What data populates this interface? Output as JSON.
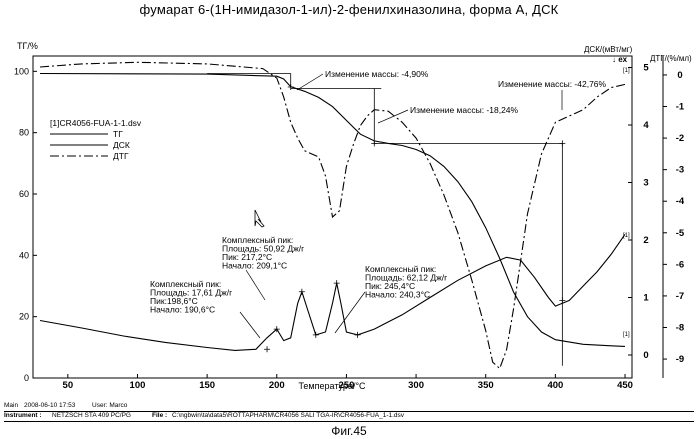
{
  "title": "фумарат 6-(1Н-имидазол-1-ил)-2-фенилхиназолина, форма А, ДСК",
  "footer": {
    "main_label": "Main",
    "main_info": "2008-06-10 17:53",
    "user_label": "User: Marco",
    "instrument_label": "Instrument :",
    "instrument": "NETZSCH STA 409 PC/PG",
    "file_label": "File :",
    "file": "C:\\ngbwin\\ta\\data5\\ROTTAPHARM\\CR4056 SALI TGA-IR\\CR4056-FUA_1-1.dsv"
  },
  "figure_label": "Фиг.45",
  "chart_data": {
    "type": "line",
    "xlabel": "Температура/°С",
    "ylabel_left": "ТГ/%",
    "ylabel_dsc": "ДСК/(мВт/мг)",
    "exo_label": "↓ ex",
    "ylabel_dtg": "ДТГ/(%/мл)",
    "xlim": [
      25,
      455
    ],
    "ylim_tg": [
      0,
      105
    ],
    "ylim_dsc": [
      -0.4,
      5.2
    ],
    "ylim_dtg": [
      -9.6,
      0.6
    ],
    "x_ticks": [
      50,
      100,
      150,
      200,
      250,
      300,
      350,
      400,
      450
    ],
    "tg_ticks": [
      0,
      20,
      40,
      60,
      80,
      100
    ],
    "dsc_ticks": [
      0,
      1,
      2,
      3,
      4,
      5
    ],
    "dtg_ticks": [
      0,
      -1,
      -2,
      -3,
      -4,
      -5,
      -6,
      -7,
      -8,
      -9
    ],
    "legend": {
      "file": "[1]CR4056-FUA-1-1.dsv",
      "entries": [
        "ТГ",
        "ДСК",
        "ДТГ"
      ]
    },
    "series": [
      {
        "name": "ТГ",
        "style": "solid",
        "axis": "tg",
        "x": [
          30,
          150,
          200,
          205,
          208,
          210,
          220,
          230,
          240,
          250,
          260,
          270,
          280,
          290,
          300,
          310,
          320,
          330,
          340,
          350,
          360,
          370,
          380,
          390,
          400,
          420,
          440,
          450
        ],
        "y": [
          99.3,
          99.1,
          98.4,
          97.5,
          96.0,
          95.0,
          93.5,
          91.5,
          88.5,
          84.0,
          79.5,
          77.3,
          76.5,
          75.8,
          74.5,
          72.5,
          69.0,
          64.0,
          57.5,
          49.0,
          39.0,
          28.0,
          20.0,
          15.0,
          12.5,
          11.0,
          10.5,
          10.3
        ]
      },
      {
        "name": "ДСК",
        "style": "solid",
        "axis": "dsc",
        "x": [
          30,
          60,
          90,
          120,
          150,
          170,
          185,
          193,
          200,
          205,
          210,
          215,
          218,
          222,
          228,
          235,
          240,
          243,
          246,
          250,
          258,
          270,
          290,
          310,
          330,
          350,
          365,
          375,
          385,
          395,
          400,
          410,
          420,
          430,
          440,
          450
        ],
        "y": [
          0.6,
          0.47,
          0.33,
          0.22,
          0.13,
          0.08,
          0.1,
          0.3,
          0.45,
          0.25,
          0.3,
          0.9,
          1.1,
          0.8,
          0.35,
          0.4,
          0.9,
          1.25,
          0.9,
          0.4,
          0.35,
          0.45,
          0.7,
          1.0,
          1.3,
          1.55,
          1.7,
          1.65,
          1.35,
          1.0,
          0.85,
          0.95,
          1.2,
          1.45,
          1.75,
          2.1
        ]
      },
      {
        "name": "ДТГ",
        "style": "dash-dot",
        "axis": "dtg",
        "x": [
          30,
          60,
          100,
          150,
          190,
          200,
          205,
          210,
          215,
          220,
          225,
          230,
          235,
          240,
          245,
          250,
          255,
          260,
          265,
          270,
          280,
          290,
          300,
          310,
          320,
          330,
          340,
          350,
          355,
          360,
          365,
          370,
          375,
          380,
          390,
          400,
          410,
          420,
          430,
          440,
          450
        ],
        "y": [
          0.25,
          0.35,
          0.4,
          0.35,
          0.2,
          -0.1,
          -0.7,
          -1.5,
          -2.0,
          -2.4,
          -2.5,
          -2.6,
          -3.2,
          -4.5,
          -4.3,
          -2.9,
          -2.2,
          -1.6,
          -1.3,
          -1.1,
          -1.15,
          -1.5,
          -2.0,
          -2.8,
          -3.8,
          -5.0,
          -6.5,
          -8.1,
          -9.1,
          -9.3,
          -8.7,
          -7.4,
          -5.9,
          -4.4,
          -2.5,
          -1.5,
          -1.3,
          -1.1,
          -0.7,
          -0.4,
          -0.3
        ]
      }
    ],
    "annotations": [
      {
        "text": "Изменение массы: -4,90%"
      },
      {
        "text": "Изменение массы: -18,24%"
      },
      {
        "text": "Изменение массы: -42,76%"
      },
      {
        "lines": [
          "Комплексный пик:",
          "Площадь: 50,92 Дж/г",
          "Пик: 217,2°С",
          "Начало: 209,1°С"
        ]
      },
      {
        "lines": [
          "Комплексный пик:",
          "Площадь: 17,61 Дж/г",
          "Пик:198,6°С",
          "Начало: 190,6°С"
        ]
      },
      {
        "lines": [
          "Комплексный пик:",
          "Площадь: 62,12 Дж/г",
          "Пик: 245,4°С",
          "Начало: 240,3°С"
        ]
      }
    ],
    "curve_markers": [
      "[1]",
      "[1]",
      "[1]"
    ]
  }
}
